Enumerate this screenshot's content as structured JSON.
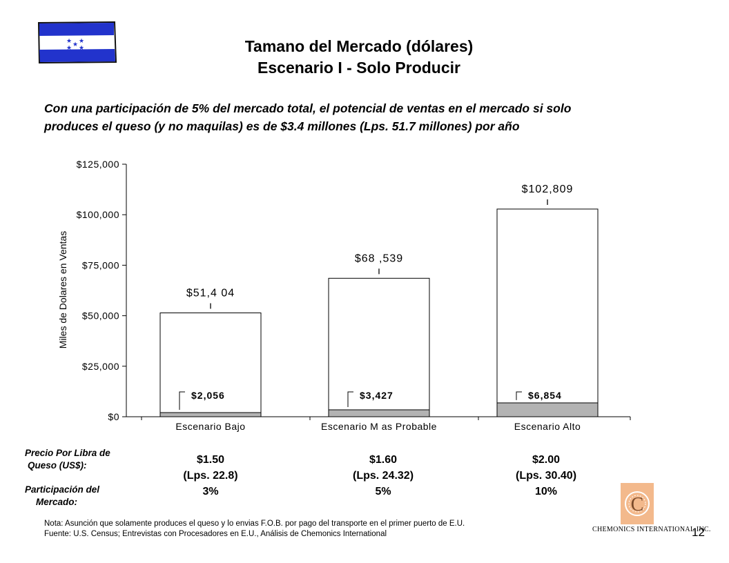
{
  "header": {
    "title_line1": "Tamano del Mercado (dólares)",
    "title_line2": "Escenario I - Solo Producir",
    "intro": "Con una participación de 5% del mercado total, el potencial de ventas en el mercado si solo produces el queso (y no maquilas) es de $3.4 millones (Lps. 51.7 millones) por año"
  },
  "chart_data": {
    "type": "bar",
    "ylabel": "Miles de Dolares en Ventas",
    "ylim": [
      0,
      125000
    ],
    "yticks": [
      "$0",
      "$25,000",
      "$50,000",
      "$75,000",
      "$100,000",
      "$125,000"
    ],
    "ytick_values": [
      0,
      25000,
      50000,
      75000,
      100000,
      125000
    ],
    "categories": [
      "Escenario Bajo",
      "Escenario M as Probable",
      "Escenario Alto"
    ],
    "series": [
      {
        "values": [
          51404,
          68539,
          102809
        ],
        "labels": [
          "$51,4 04",
          "$68 ,539",
          "$102,809"
        ],
        "color": "#ffffff"
      },
      {
        "values": [
          2056,
          3427,
          6854
        ],
        "labels": [
          "$2,056",
          "$3,427",
          "$6,854"
        ],
        "color": "#b3b3b3"
      }
    ]
  },
  "table": {
    "price_label_line1": "Precio Por Libra de",
    "price_label_line2": "Queso (US$):",
    "share_label_line1": "Participación del",
    "share_label_line2": "Mercado:",
    "columns": [
      {
        "price": "$1.50",
        "lps": "(Lps. 22.8)",
        "share": "3%"
      },
      {
        "price": "$1.60",
        "lps": "(Lps. 24.32)",
        "share": "5%"
      },
      {
        "price": "$2.00",
        "lps": "(Lps. 30.40)",
        "share": "10%"
      }
    ]
  },
  "footer": {
    "note": "Nota: Asunción que solamente produces el queso y lo envias F.O.B. por pago del transporte en el primer puerto de E.U.",
    "source": "Fuente: U.S. Census; Entrevistas con Procesadores en E.U., Análisis de Chemonics International",
    "page_number": "12",
    "company": "CHEMONICS INTERNATIONAL INC."
  },
  "colors": {
    "flag_blue": "#2233cc",
    "logo_orange": "#f3b98c"
  }
}
